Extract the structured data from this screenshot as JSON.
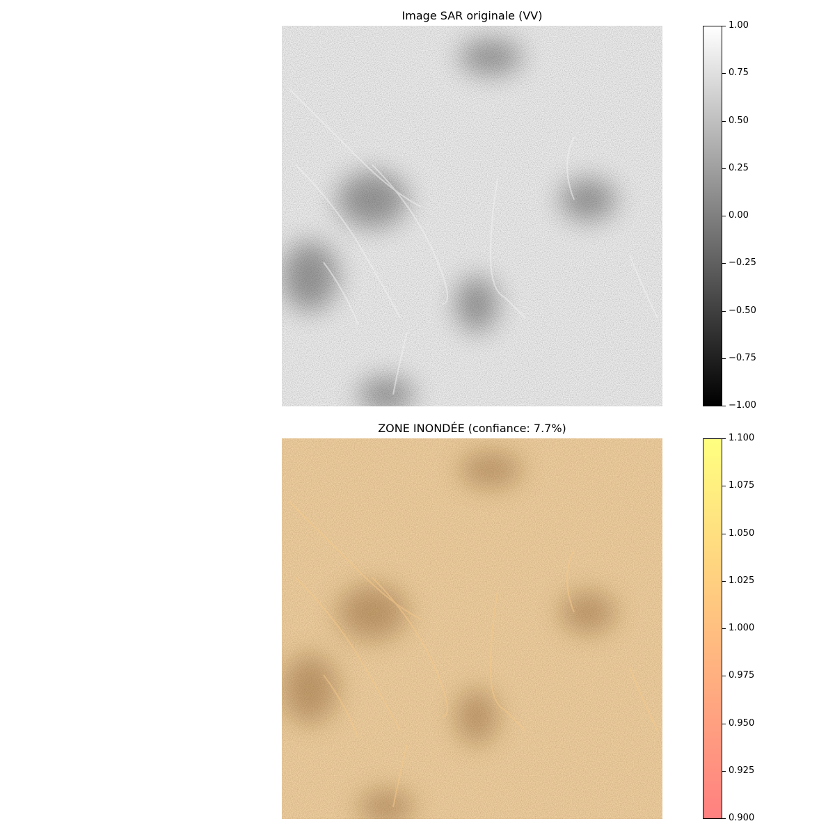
{
  "chart_data": [
    {
      "type": "heatmap",
      "title": "Image SAR originale (VV)",
      "colormap": "gray",
      "colors": [
        "#000000",
        "#ffffff"
      ],
      "colorbar": {
        "range": [
          -1.0,
          1.0
        ],
        "ticks": [
          "1.00",
          "0.75",
          "0.50",
          "0.25",
          "0.00",
          "−0.25",
          "−0.50",
          "−0.75",
          "−1.00"
        ]
      }
    },
    {
      "type": "heatmap",
      "title": "ZONE INONDÉE (confiance: 7.7%)",
      "colormap": "autumn",
      "colors": [
        "#ff8080",
        "#ffff80"
      ],
      "image_tint": "#c98a48",
      "colorbar": {
        "range": [
          0.9,
          1.1
        ],
        "ticks": [
          "1.100",
          "1.075",
          "1.050",
          "1.025",
          "1.000",
          "0.975",
          "0.950",
          "0.925",
          "0.900"
        ]
      }
    }
  ]
}
